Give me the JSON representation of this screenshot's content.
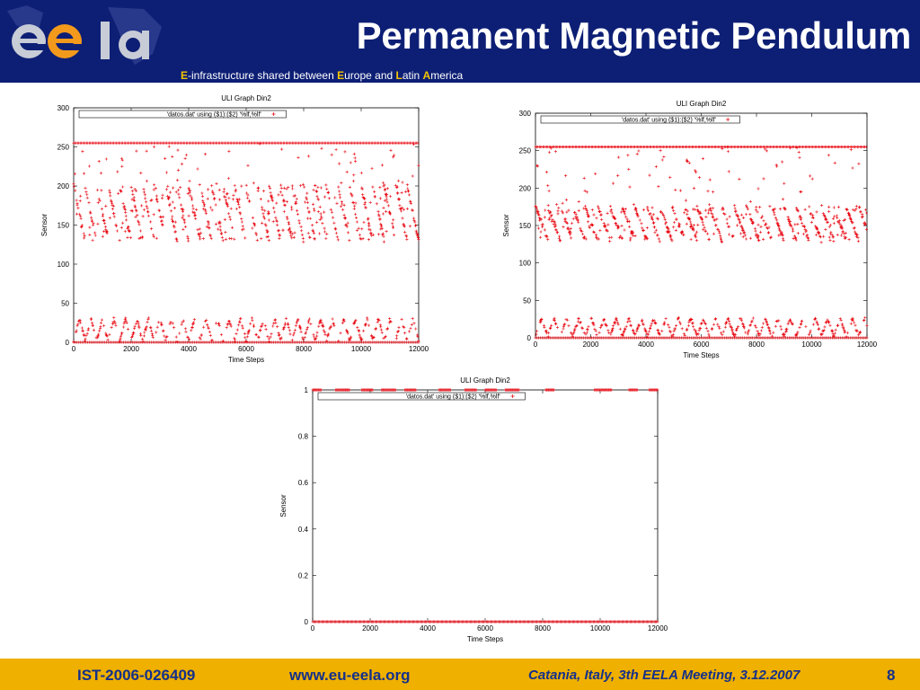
{
  "header": {
    "title": "Permanent Magnetic Pendulum",
    "subtitle": {
      "e1": "E",
      "t1": "-infrastructure shared between ",
      "e2": "E",
      "t2": "urope and ",
      "e3": "L",
      "t3": "atin ",
      "e4": "A",
      "t4": "merica"
    },
    "logo": "eela-logo"
  },
  "footer": {
    "project_id": "IST-2006-026409",
    "website": "www.eu-eela.org",
    "meeting": "Catania, Italy, 3th EELA Meeting, 3.12.2007",
    "page_number": "8"
  },
  "colors": {
    "header_bg": "#0d1f75",
    "footer_bg": "#f0b000",
    "accent": "#f5c400",
    "series": "#e8000b"
  },
  "chart_data": [
    {
      "type": "scatter",
      "title": "ULI Graph Din2",
      "xlabel": "Time Steps",
      "ylabel": "Sensor",
      "xlim": [
        0,
        12000
      ],
      "ylim": [
        0,
        300
      ],
      "xticks": [
        "0",
        "2000",
        "4000",
        "6000",
        "8000",
        "10000",
        "12000"
      ],
      "yticks": [
        "0",
        "50",
        "100",
        "150",
        "200",
        "250",
        "300"
      ],
      "legend": "'datos.dat' using ($1):($2) '%lf,%lf'",
      "legend_position": "top-left",
      "series": [
        {
          "values_description_level_high": 255,
          "cycle_band": [
            130,
            200
          ],
          "low_band": [
            0,
            35
          ],
          "cycle_period": 400
        }
      ]
    },
    {
      "type": "scatter",
      "title": "ULI Graph Din2",
      "xlabel": "Time Steps",
      "ylabel": "Sensor",
      "xlim": [
        0,
        12000
      ],
      "ylim": [
        0,
        300
      ],
      "xticks": [
        "0",
        "2000",
        "4000",
        "6000",
        "8000",
        "10000",
        "12000"
      ],
      "yticks": [
        "0",
        "50",
        "100",
        "150",
        "200",
        "250",
        "300"
      ],
      "legend": "'datos.dat' using ($1):($2) '%lf,%lf'",
      "legend_position": "top-left",
      "series": [
        {
          "values_description_level_high": 255,
          "cycle_band": [
            130,
            175
          ],
          "low_band": [
            0,
            30
          ],
          "cycle_period": 450
        }
      ]
    },
    {
      "type": "scatter",
      "title": "ULI Graph Din2",
      "xlabel": "Time Steps",
      "ylabel": "Sensor",
      "xlim": [
        0,
        12000
      ],
      "ylim": [
        0,
        1
      ],
      "xticks": [
        "0",
        "2000",
        "4000",
        "6000",
        "8000",
        "10000",
        "12000"
      ],
      "yticks": [
        "0",
        "0.2",
        "0.4",
        "0.6",
        "0.8",
        "1"
      ],
      "legend": "'datos.dat' using ($1):($2) '%lf,%lf'",
      "legend_position": "top-left",
      "series": [
        {
          "levels": [
            0,
            1
          ],
          "high_segments": [
            [
              0,
              300
            ],
            [
              800,
              1300
            ],
            [
              1700,
              2100
            ],
            [
              2400,
              2900
            ],
            [
              3200,
              3600
            ],
            [
              4400,
              4800
            ],
            [
              5300,
              5700
            ],
            [
              6000,
              6400
            ],
            [
              6700,
              7200
            ],
            [
              8100,
              8400
            ],
            [
              9800,
              10400
            ],
            [
              11000,
              11300
            ],
            [
              11700,
              12000
            ]
          ]
        }
      ]
    }
  ]
}
